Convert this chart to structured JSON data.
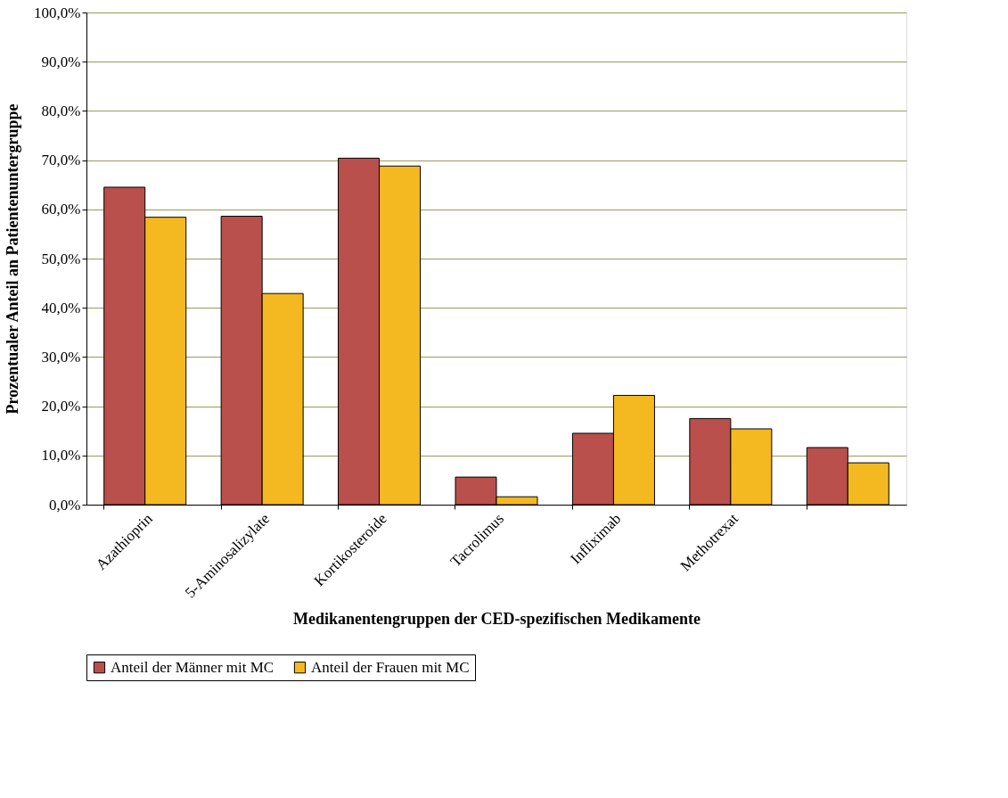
{
  "chart_data": {
    "type": "bar",
    "xlabel": "Medikanentengruppen der CED-spezifischen Medikamente",
    "ylabel": "Prozentualer Anteil an Patientenuntergruppe",
    "categories": [
      "Azathioprin",
      "5-Aminosalizylate",
      "Kortikosteroide",
      "Tacrolimus",
      "Infliximab",
      "Methotrexat",
      null
    ],
    "series": [
      {
        "name": "Anteil der Männer mit MC",
        "color": "#b9504c",
        "values": [
          64.5,
          58.6,
          70.4,
          5.6,
          14.5,
          17.5,
          11.6
        ]
      },
      {
        "name": "Anteil der Frauen mit MC",
        "color": "#f4b921",
        "values": [
          58.4,
          42.9,
          68.8,
          1.6,
          22.2,
          15.4,
          8.5
        ]
      }
    ],
    "ylim": [
      0,
      100
    ],
    "yticks": [
      {
        "value": 0,
        "label": "0,0%"
      },
      {
        "value": 10,
        "label": "10,0%"
      },
      {
        "value": 20,
        "label": "20,0%"
      },
      {
        "value": 30,
        "label": "30,0%"
      },
      {
        "value": 40,
        "label": "40,0%"
      },
      {
        "value": 50,
        "label": "50,0%"
      },
      {
        "value": 60,
        "label": "60,0%"
      },
      {
        "value": 70,
        "label": "70,0%"
      },
      {
        "value": 80,
        "label": "80,0%"
      },
      {
        "value": 90,
        "label": "90,0%"
      },
      {
        "value": 100,
        "label": "100,0%"
      }
    ],
    "grid": "y",
    "legend": "bottom"
  }
}
